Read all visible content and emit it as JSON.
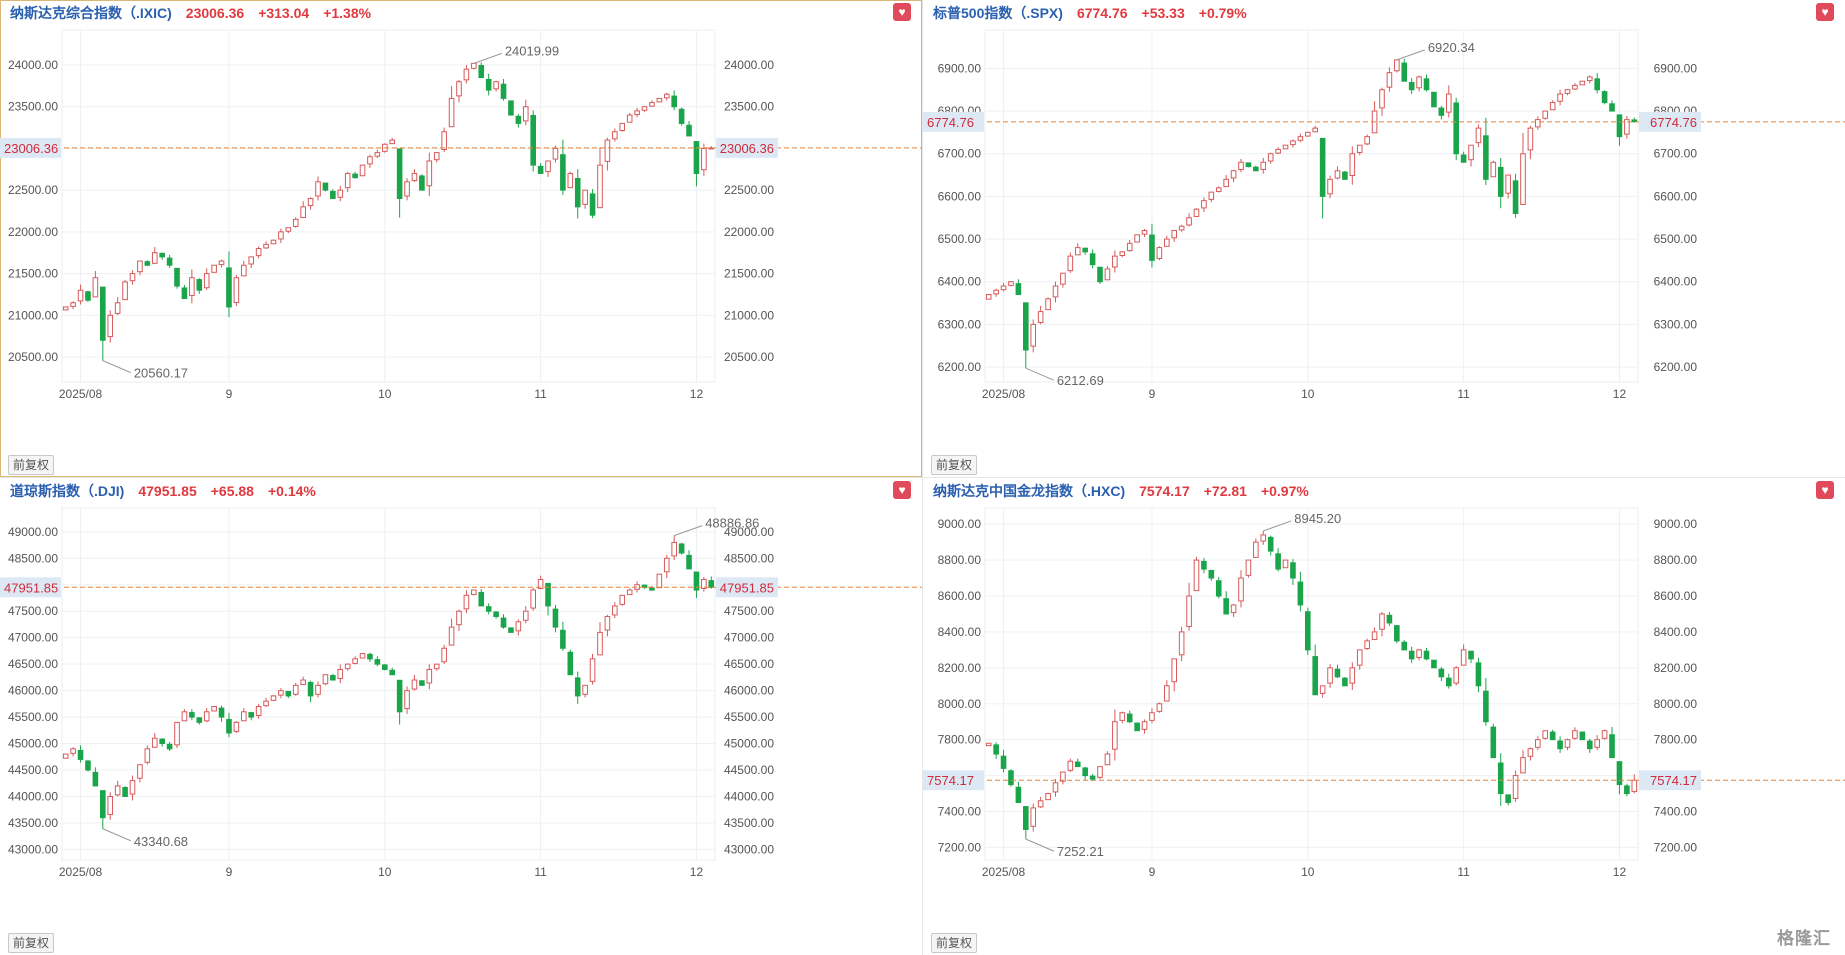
{
  "button_label": "前复权",
  "watermark": "格隆汇",
  "colors": {
    "up": "#d85a5a",
    "down": "#1aa54a",
    "grid": "#eef0f3",
    "axis_text": "#555555",
    "title": "#2a5fb0",
    "quote": "#e0393e",
    "last_line": "#e8843a",
    "last_label_bg": "#dde8f5",
    "last_label_text": "#d12a3a"
  },
  "panels": [
    {
      "name": "纳斯达克综合指数（.IXIC)",
      "price": "23006.36",
      "change": "+313.04",
      "pct": "+1.38%",
      "chart_data": {
        "type": "candlestick",
        "x_labels": [
          "2025/08",
          "9",
          "10",
          "11",
          "12"
        ],
        "x_label_index": [
          2,
          22,
          43,
          64,
          85
        ],
        "y_ticks": [
          20500,
          21000,
          21500,
          22000,
          22500,
          23000,
          23500,
          24000
        ],
        "y_tick_labels": [
          "20500.00",
          "21000.00",
          "21500.00",
          "22000.00",
          "22500.00",
          "23000.00",
          "23500.00",
          "24000.00"
        ],
        "ylim": [
          20200,
          24420
        ],
        "last_value": "23006.36",
        "high_label": "24019.99",
        "low_label": "20560.17",
        "closes": [
          21100,
          21150,
          21300,
          21180,
          21450,
          20700,
          21000,
          21150,
          21400,
          21500,
          21650,
          21600,
          21750,
          21700,
          21600,
          21350,
          21200,
          21450,
          21300,
          21500,
          21600,
          21650,
          21100,
          21450,
          21600,
          21700,
          21800,
          21850,
          21900,
          22000,
          22050,
          22150,
          22300,
          22400,
          22600,
          22500,
          22400,
          22500,
          22700,
          22650,
          22800,
          22900,
          22950,
          23050,
          23100,
          22400,
          22600,
          22700,
          22500,
          22850,
          22950,
          23200,
          23600,
          23800,
          23950,
          24020,
          23850,
          23700,
          23800,
          23600,
          23400,
          23300,
          23500,
          22800,
          22700,
          22850,
          23000,
          22500,
          22700,
          22300,
          22500,
          22200,
          22800,
          23100,
          23200,
          23300,
          23400,
          23450,
          23500,
          23550,
          23600,
          23650,
          23500,
          23300,
          23150,
          22700,
          23000,
          23006
        ]
      }
    },
    {
      "name": "标普500指数（.SPX)",
      "price": "6774.76",
      "change": "+53.33",
      "pct": "+0.79%",
      "chart_data": {
        "type": "candlestick",
        "x_labels": [
          "2025/08",
          "9",
          "10",
          "11",
          "12"
        ],
        "x_label_index": [
          2,
          22,
          43,
          64,
          85
        ],
        "y_ticks": [
          6200,
          6300,
          6400,
          6500,
          6600,
          6700,
          6800,
          6900
        ],
        "y_tick_labels": [
          "6200.00",
          "6300.00",
          "6400.00",
          "6500.00",
          "6600.00",
          "6700.00",
          "6800.00",
          "6900.00"
        ],
        "ylim": [
          6165,
          6990
        ],
        "last_value": "6774.76",
        "high_label": "6920.34",
        "low_label": "6212.69",
        "closes": [
          6370,
          6380,
          6390,
          6400,
          6370,
          6240,
          6300,
          6330,
          6360,
          6390,
          6420,
          6460,
          6480,
          6470,
          6440,
          6400,
          6430,
          6460,
          6470,
          6490,
          6510,
          6520,
          6450,
          6480,
          6500,
          6520,
          6530,
          6550,
          6570,
          6590,
          6610,
          6620,
          6640,
          6660,
          6680,
          6670,
          6660,
          6680,
          6700,
          6710,
          6720,
          6730,
          6740,
          6750,
          6760,
          6600,
          6640,
          6660,
          6640,
          6700,
          6720,
          6740,
          6800,
          6850,
          6890,
          6920,
          6870,
          6850,
          6880,
          6850,
          6810,
          6790,
          6840,
          6700,
          6680,
          6720,
          6760,
          6640,
          6680,
          6600,
          6650,
          6560,
          6700,
          6760,
          6780,
          6800,
          6820,
          6840,
          6850,
          6860,
          6870,
          6880,
          6850,
          6820,
          6800,
          6740,
          6780,
          6775
        ]
      }
    },
    {
      "name": "道琼斯指数（.DJI)",
      "price": "47951.85",
      "change": "+65.88",
      "pct": "+0.14%",
      "chart_data": {
        "type": "candlestick",
        "x_labels": [
          "2025/08",
          "9",
          "10",
          "11",
          "12"
        ],
        "x_label_index": [
          2,
          22,
          43,
          64,
          85
        ],
        "y_ticks": [
          43000,
          43500,
          44000,
          44500,
          45000,
          45500,
          46000,
          46500,
          47000,
          47500,
          48000,
          48500,
          49000
        ],
        "y_tick_labels": [
          "43000.00",
          "43500.00",
          "44000.00",
          "44500.00",
          "45000.00",
          "45500.00",
          "46000.00",
          "46500.00",
          "47000.00",
          "47500.00",
          "48000.00",
          "48500.00",
          "49000.00"
        ],
        "ylim": [
          42800,
          49450
        ],
        "last_value": "47951.85",
        "high_label": "48886.86",
        "low_label": "43340.68",
        "closes": [
          44800,
          44900,
          44700,
          44500,
          44200,
          43600,
          44000,
          44200,
          44000,
          44300,
          44600,
          44900,
          45100,
          45000,
          44900,
          45400,
          45600,
          45500,
          45400,
          45600,
          45700,
          45500,
          45200,
          45400,
          45600,
          45500,
          45700,
          45800,
          45900,
          46000,
          45900,
          46100,
          46200,
          45900,
          46100,
          46300,
          46200,
          46400,
          46500,
          46600,
          46700,
          46600,
          46500,
          46400,
          46300,
          45600,
          46000,
          46200,
          46100,
          46400,
          46500,
          46800,
          47200,
          47500,
          47800,
          47900,
          47600,
          47500,
          47400,
          47200,
          47100,
          47300,
          47500,
          47900,
          48100,
          47600,
          47200,
          46800,
          46300,
          45900,
          46100,
          46600,
          47100,
          47400,
          47600,
          47800,
          47900,
          48000,
          47950,
          47900,
          48200,
          48500,
          48800,
          48600,
          48300,
          47900,
          48100,
          47952
        ]
      }
    },
    {
      "name": "纳斯达克中国金龙指数（.HXC)",
      "price": "7574.17",
      "change": "+72.81",
      "pct": "+0.97%",
      "chart_data": {
        "type": "candlestick",
        "x_labels": [
          "2025/08",
          "9",
          "10",
          "11",
          "12"
        ],
        "x_label_index": [
          2,
          22,
          43,
          64,
          85
        ],
        "y_ticks": [
          7200,
          7400,
          7600,
          7800,
          8000,
          8200,
          8400,
          8600,
          8800,
          9000
        ],
        "y_tick_labels": [
          "7200.00",
          "7400.00",
          "7600.00",
          "7800.00",
          "8000.00",
          "8200.00",
          "8400.00",
          "8600.00",
          "8800.00",
          "9000.00"
        ],
        "ylim": [
          7130,
          9090
        ],
        "last_value": "7574.17",
        "high_label": "8945.20",
        "low_label": "7252.21",
        "closes": [
          7780,
          7720,
          7640,
          7550,
          7450,
          7300,
          7420,
          7460,
          7500,
          7560,
          7620,
          7680,
          7650,
          7600,
          7580,
          7650,
          7720,
          7900,
          7950,
          7900,
          7850,
          7900,
          7950,
          8000,
          8100,
          8250,
          8400,
          8600,
          8800,
          8750,
          8700,
          8600,
          8500,
          8550,
          8700,
          8800,
          8900,
          8940,
          8850,
          8750,
          8800,
          8700,
          8550,
          8300,
          8050,
          8100,
          8200,
          8150,
          8100,
          8200,
          8300,
          8350,
          8400,
          8500,
          8450,
          8350,
          8300,
          8250,
          8300,
          8250,
          8200,
          8150,
          8100,
          8200,
          8300,
          8250,
          8100,
          7900,
          7700,
          7500,
          7450,
          7600,
          7700,
          7750,
          7800,
          7850,
          7800,
          7750,
          7800,
          7850,
          7800,
          7750,
          7800,
          7850,
          7700,
          7550,
          7500,
          7574
        ]
      }
    }
  ]
}
